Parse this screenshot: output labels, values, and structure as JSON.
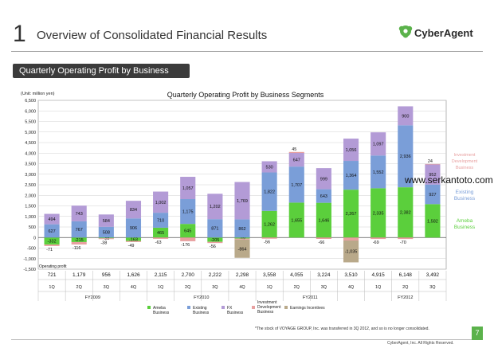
{
  "page": {
    "number": "1",
    "title": "Overview of Consolidated Financial Results",
    "section": "Quarterly Operating Profit by Business Segments",
    "logo_text": "CyberAgent",
    "watermark": "www.serkantoto.com",
    "footnote": "*The stock of VOYAGE GROUP, Inc. was transferred in 3Q 2012, and so is no longer consolidated.",
    "page_num": "7",
    "copyright": "CyberAgent, Inc. All Rights Reserved."
  },
  "colors": {
    "ameba": "#5bcf3c",
    "existing": "#7a9ed8",
    "fx": "#b39bd6",
    "investment": "#e8a0a0",
    "earnings": "#b9a98a",
    "brand_green": "#5bb24b"
  },
  "chart_data": {
    "type": "bar",
    "stacked": true,
    "title": "Quarterly Operating Profit by Business Segments",
    "unit_label": "(Unit: million yen)",
    "ylim": [
      -1500,
      6500
    ],
    "yticks": [
      "-1,500",
      "-1,000",
      "-500",
      "0",
      "500",
      "1,000",
      "1,500",
      "2,000",
      "2,500",
      "3,000",
      "3,500",
      "4,000",
      "4,500",
      "5,000",
      "5,500",
      "6,000",
      "6,500"
    ],
    "ytick_values": [
      -1500,
      -1000,
      -500,
      0,
      500,
      1000,
      1500,
      2000,
      2500,
      3000,
      3500,
      4000,
      4500,
      5000,
      5500,
      6000,
      6500
    ],
    "grid": true,
    "categories": [
      "1Q",
      "2Q",
      "3Q",
      "4Q",
      "1Q",
      "2Q",
      "3Q",
      "4Q",
      "1Q",
      "2Q",
      "3Q",
      "4Q",
      "1Q",
      "2Q",
      "3Q"
    ],
    "year_groups": [
      {
        "label": "FY2009",
        "start": 0,
        "end": 3
      },
      {
        "label": "FY2010",
        "start": 4,
        "end": 7
      },
      {
        "label": "FY2011",
        "start": 8,
        "end": 11
      },
      {
        "label": "FY2012",
        "start": 12,
        "end": 14
      }
    ],
    "operating_profit_label": "Operating profit",
    "operating_profit": [
      "721",
      "1,179",
      "956",
      "1,626",
      "2,115",
      "2,700",
      "2,222",
      "2,298",
      "3,558",
      "4,055",
      "3,224",
      "3,510",
      "4,915",
      "6,148",
      "3,492"
    ],
    "series": [
      {
        "name": "Ameba Business",
        "key": "ameba",
        "values": [
          -332,
          -215,
          -38,
          -163,
          465,
          645,
          -205,
          -49,
          1262,
          1655,
          1646,
          2267,
          2335,
          2382,
          1582
        ],
        "labels": [
          "-332",
          "-215",
          "-38",
          "-163",
          "465",
          "645",
          "-205",
          "-49",
          "1,262",
          "1,655",
          "1,646",
          "2,267",
          "2,335",
          "2,382",
          "1,582"
        ]
      },
      {
        "name": "Existing Business",
        "key": "existing",
        "values": [
          627,
          767,
          508,
          906,
          710,
          1175,
          871,
          862,
          1822,
          1707,
          643,
          1364,
          1552,
          2936,
          927
        ],
        "labels": [
          "627",
          "767",
          "508",
          "906",
          "710",
          "1,175",
          "871",
          "862",
          "1,822",
          "1,707",
          "643",
          "1,364",
          "1,552",
          "2,936",
          "927"
        ]
      },
      {
        "name": "FX Business",
        "key": "fx",
        "values": [
          494,
          743,
          584,
          834,
          1002,
          1057,
          1202,
          1769,
          530,
          647,
          999,
          1056,
          1097,
          900,
          952
        ],
        "labels": [
          "494",
          "743",
          "584",
          "834",
          "1,002",
          "1,057",
          "1,202",
          "1,769",
          "530",
          "647",
          "999",
          "1,056",
          "1,097",
          "900",
          "952"
        ]
      },
      {
        "name": "Investment Development Business",
        "key": "investment",
        "values": [
          -71,
          -116,
          -38,
          -49,
          -63,
          -176,
          -56,
          -49,
          -56,
          45,
          -66,
          -142,
          -69,
          -70,
          24
        ],
        "labels": [
          "-71",
          "-116",
          "-38",
          "-49",
          "-63",
          "-176",
          "-56",
          "-49",
          "-56",
          "45",
          "-66",
          "-142",
          "-69",
          "-70",
          "24"
        ]
      },
      {
        "name": "Earnings Incentives",
        "key": "earnings",
        "values": [
          0,
          0,
          0,
          0,
          0,
          0,
          0,
          -864,
          0,
          0,
          0,
          -1035,
          0,
          0,
          0
        ],
        "labels": [
          "",
          "",
          "",
          "",
          "",
          "",
          "",
          "-864",
          "",
          "",
          "",
          "-1,035",
          "",
          "",
          ""
        ]
      }
    ],
    "right_labels": [
      {
        "key": "investment",
        "text": "Investment Development Business"
      },
      {
        "key": "existing",
        "text": "Existing Business"
      },
      {
        "key": "ameba",
        "text": "Ameba Business"
      }
    ],
    "legend": [
      {
        "key": "ameba",
        "text": "Ameba Business"
      },
      {
        "key": "existing",
        "text": "Existing Business"
      },
      {
        "key": "fx",
        "text": "FX Business"
      },
      {
        "key": "investment",
        "text": "Investment Development Business"
      },
      {
        "key": "earnings",
        "text": "Earnings Incentives"
      }
    ],
    "legend_position": "bottom"
  }
}
